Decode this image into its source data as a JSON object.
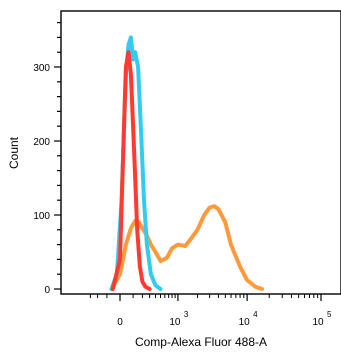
{
  "chart_data": {
    "type": "area",
    "xlabel": "Comp-Alexa Fluor 488-A",
    "ylabel": "Count",
    "ylim": [
      0,
      370
    ],
    "x_scale": "biexponential",
    "x_ticks": [
      {
        "value": 0,
        "label": "0",
        "exp": ""
      },
      {
        "value": 1000,
        "label": "10",
        "exp": "3"
      },
      {
        "value": 10000,
        "label": "10",
        "exp": "4"
      },
      {
        "value": 100000,
        "label": "10",
        "exp": "5"
      }
    ],
    "y_ticks": [
      {
        "value": 0,
        "label": "0"
      },
      {
        "value": 100,
        "label": "100"
      },
      {
        "value": 200,
        "label": "200"
      },
      {
        "value": 300,
        "label": "300"
      }
    ],
    "series": [
      {
        "color": "#ff3b30",
        "x": [
          -50,
          0,
          20,
          40,
          60,
          80,
          100,
          120,
          140,
          170,
          200,
          240,
          300
        ],
        "y": [
          0,
          40,
          180,
          300,
          320,
          290,
          220,
          150,
          80,
          30,
          10,
          3,
          0
        ]
      },
      {
        "color": "#33ccf0",
        "x": [
          -60,
          -20,
          10,
          40,
          60,
          80,
          100,
          120,
          150,
          180,
          220,
          260,
          320,
          400,
          500
        ],
        "y": [
          0,
          20,
          120,
          290,
          330,
          340,
          310,
          320,
          300,
          220,
          120,
          60,
          20,
          5,
          0
        ]
      },
      {
        "color": "#ff9a3c",
        "x": [
          -60,
          0,
          40,
          80,
          120,
          160,
          200,
          260,
          320,
          400,
          500,
          650,
          800,
          1000,
          1300,
          1600,
          2000,
          2500,
          3000,
          3500,
          4000,
          5000,
          6000,
          8000,
          10000,
          13000,
          16000
        ],
        "y": [
          0,
          20,
          60,
          82,
          92,
          90,
          82,
          72,
          60,
          50,
          38,
          42,
          55,
          60,
          58,
          68,
          80,
          100,
          110,
          112,
          108,
          90,
          60,
          30,
          12,
          3,
          0
        ]
      }
    ]
  }
}
